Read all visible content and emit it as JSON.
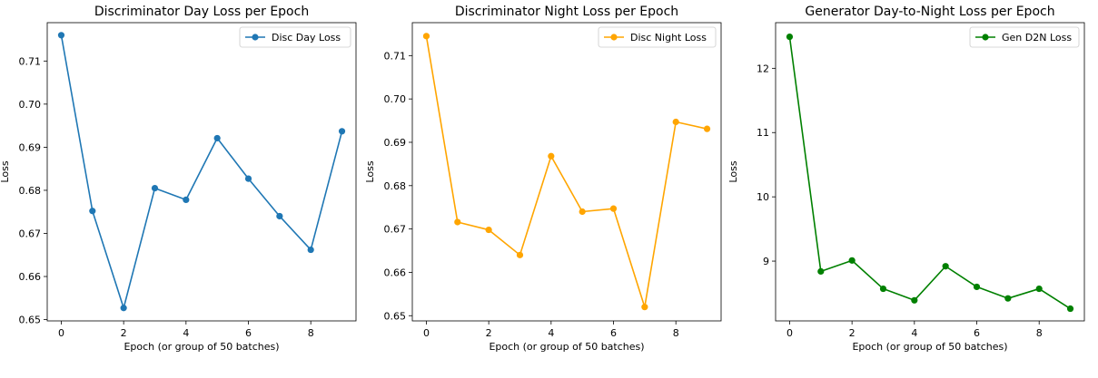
{
  "chart_data": [
    {
      "type": "line",
      "title": "Discriminator Day Loss per Epoch",
      "xlabel": "Epoch (or group of 50 batches)",
      "ylabel": "Loss",
      "xlim": [
        -0.45,
        9.45
      ],
      "ylim": [
        0.6497,
        0.7189
      ],
      "xticks": [
        0,
        2,
        4,
        6,
        8
      ],
      "yticks": [
        0.65,
        0.66,
        0.67,
        0.68,
        0.69,
        0.7,
        0.71
      ],
      "ytick_labels": [
        "0.65",
        "0.66",
        "0.67",
        "0.68",
        "0.69",
        "0.70",
        "0.71"
      ],
      "legend": "top-right",
      "grid": false,
      "series": [
        {
          "name": "Disc Day Loss",
          "color": "#1f77b4",
          "x": [
            0,
            1,
            2,
            3,
            4,
            5,
            6,
            7,
            8,
            9
          ],
          "y": [
            0.716,
            0.6752,
            0.6527,
            0.6805,
            0.6778,
            0.6921,
            0.6827,
            0.674,
            0.6662,
            0.6937
          ]
        }
      ]
    },
    {
      "type": "line",
      "title": "Discriminator Night Loss per Epoch",
      "xlabel": "Epoch (or group of 50 batches)",
      "ylabel": "Loss",
      "xlim": [
        -0.45,
        9.45
      ],
      "ylim": [
        0.6488,
        0.7176
      ],
      "xticks": [
        0,
        2,
        4,
        6,
        8
      ],
      "yticks": [
        0.65,
        0.66,
        0.67,
        0.68,
        0.69,
        0.7,
        0.71
      ],
      "ytick_labels": [
        "0.65",
        "0.66",
        "0.67",
        "0.68",
        "0.69",
        "0.70",
        "0.71"
      ],
      "legend": "top-right",
      "grid": false,
      "series": [
        {
          "name": "Disc Night Loss",
          "color": "#ffa500",
          "x": [
            0,
            1,
            2,
            3,
            4,
            5,
            6,
            7,
            8,
            9
          ],
          "y": [
            0.7145,
            0.6716,
            0.6698,
            0.664,
            0.6868,
            0.674,
            0.6747,
            0.652,
            0.6947,
            0.6931
          ]
        }
      ]
    },
    {
      "type": "line",
      "title": "Generator Day-to-Night Loss per Epoch",
      "xlabel": "Epoch (or group of 50 batches)",
      "ylabel": "Loss",
      "xlim": [
        -0.45,
        9.45
      ],
      "ylim": [
        8.07,
        12.71
      ],
      "xticks": [
        0,
        2,
        4,
        6,
        8
      ],
      "yticks": [
        9,
        10,
        11,
        12
      ],
      "ytick_labels": [
        "9",
        "10",
        "11",
        "12"
      ],
      "legend": "top-right",
      "grid": false,
      "series": [
        {
          "name": "Gen D2N Loss",
          "color": "#008000",
          "x": [
            0,
            1,
            2,
            3,
            4,
            5,
            6,
            7,
            8,
            9
          ],
          "y": [
            12.49,
            8.84,
            9.01,
            8.57,
            8.39,
            8.92,
            8.6,
            8.42,
            8.57,
            8.26
          ]
        }
      ]
    }
  ]
}
